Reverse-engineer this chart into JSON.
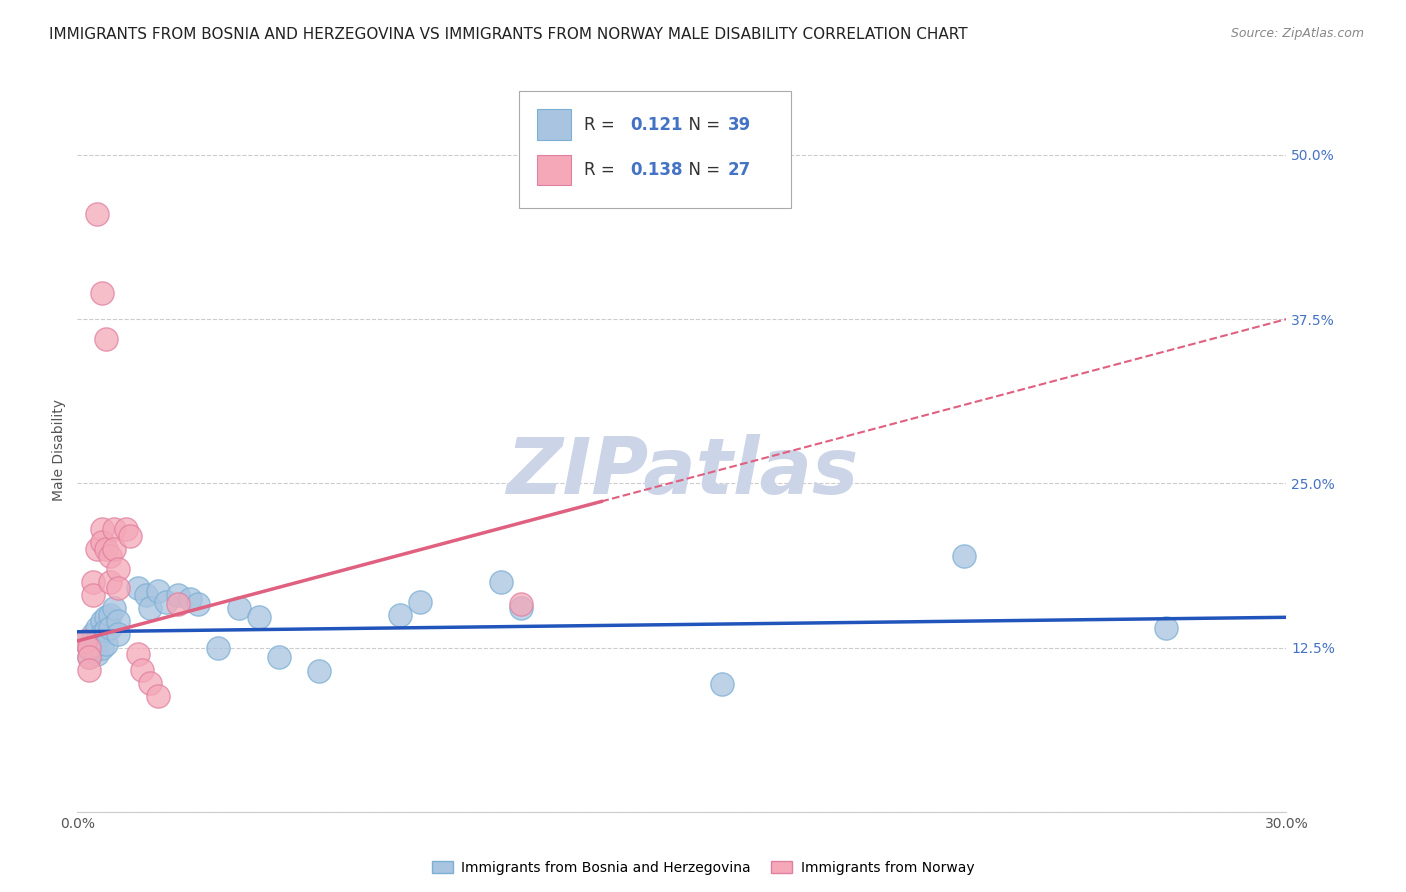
{
  "title": "IMMIGRANTS FROM BOSNIA AND HERZEGOVINA VS IMMIGRANTS FROM NORWAY MALE DISABILITY CORRELATION CHART",
  "source": "Source: ZipAtlas.com",
  "ylabel": "Male Disability",
  "xlim": [
    0.0,
    0.3
  ],
  "ylim": [
    0.0,
    0.55
  ],
  "yticks": [
    0.0,
    0.125,
    0.25,
    0.375,
    0.5
  ],
  "ytick_labels": [
    "",
    "12.5%",
    "25.0%",
    "37.5%",
    "50.0%"
  ],
  "xticks": [
    0.0,
    0.05,
    0.1,
    0.15,
    0.2,
    0.25,
    0.3
  ],
  "xtick_labels": [
    "0.0%",
    "",
    "",
    "",
    "",
    "",
    "30.0%"
  ],
  "blue_R": 0.121,
  "blue_N": 39,
  "pink_R": 0.138,
  "pink_N": 27,
  "blue_color": "#a8c4e0",
  "pink_color": "#f4a8b8",
  "blue_line_color": "#2255bb",
  "pink_line_color": "#e06080",
  "blue_scatter": [
    [
      0.002,
      0.13
    ],
    [
      0.003,
      0.125
    ],
    [
      0.003,
      0.118
    ],
    [
      0.004,
      0.135
    ],
    [
      0.004,
      0.122
    ],
    [
      0.005,
      0.14
    ],
    [
      0.005,
      0.13
    ],
    [
      0.005,
      0.12
    ],
    [
      0.006,
      0.145
    ],
    [
      0.006,
      0.135
    ],
    [
      0.006,
      0.125
    ],
    [
      0.007,
      0.148
    ],
    [
      0.007,
      0.138
    ],
    [
      0.007,
      0.128
    ],
    [
      0.008,
      0.15
    ],
    [
      0.008,
      0.14
    ],
    [
      0.009,
      0.155
    ],
    [
      0.01,
      0.145
    ],
    [
      0.01,
      0.135
    ],
    [
      0.015,
      0.17
    ],
    [
      0.017,
      0.165
    ],
    [
      0.018,
      0.155
    ],
    [
      0.02,
      0.168
    ],
    [
      0.022,
      0.16
    ],
    [
      0.025,
      0.165
    ],
    [
      0.028,
      0.162
    ],
    [
      0.03,
      0.158
    ],
    [
      0.04,
      0.155
    ],
    [
      0.045,
      0.148
    ],
    [
      0.06,
      0.107
    ],
    [
      0.08,
      0.15
    ],
    [
      0.085,
      0.16
    ],
    [
      0.105,
      0.175
    ],
    [
      0.11,
      0.155
    ],
    [
      0.16,
      0.097
    ],
    [
      0.22,
      0.195
    ],
    [
      0.27,
      0.14
    ],
    [
      0.05,
      0.118
    ],
    [
      0.035,
      0.125
    ]
  ],
  "pink_scatter": [
    [
      0.002,
      0.13
    ],
    [
      0.003,
      0.125
    ],
    [
      0.003,
      0.118
    ],
    [
      0.004,
      0.175
    ],
    [
      0.004,
      0.165
    ],
    [
      0.005,
      0.455
    ],
    [
      0.006,
      0.395
    ],
    [
      0.007,
      0.36
    ],
    [
      0.005,
      0.2
    ],
    [
      0.006,
      0.215
    ],
    [
      0.006,
      0.205
    ],
    [
      0.007,
      0.2
    ],
    [
      0.008,
      0.195
    ],
    [
      0.008,
      0.175
    ],
    [
      0.009,
      0.215
    ],
    [
      0.009,
      0.2
    ],
    [
      0.01,
      0.185
    ],
    [
      0.01,
      0.17
    ],
    [
      0.012,
      0.215
    ],
    [
      0.013,
      0.21
    ],
    [
      0.015,
      0.12
    ],
    [
      0.016,
      0.108
    ],
    [
      0.018,
      0.098
    ],
    [
      0.02,
      0.088
    ],
    [
      0.025,
      0.158
    ],
    [
      0.11,
      0.158
    ],
    [
      0.003,
      0.108
    ]
  ],
  "background_color": "#ffffff",
  "grid_color": "#cccccc",
  "title_fontsize": 11,
  "axis_label_fontsize": 10,
  "tick_fontsize": 10,
  "legend_fontsize": 12,
  "watermark_text": "ZIPatlas",
  "watermark_color": "#ccd5e8",
  "watermark_fontsize": 56
}
